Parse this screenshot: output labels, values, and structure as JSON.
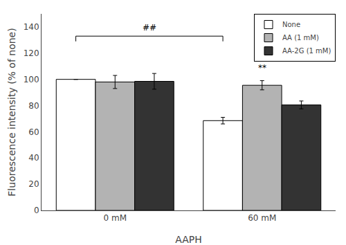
{
  "chart_data": {
    "type": "bar",
    "categories": [
      "0 mM",
      "60 mM"
    ],
    "xlabel": "AAPH",
    "ylabel": "Fluorescence intensity (% of none)",
    "series": [
      {
        "name": "None",
        "color": "#ffffff",
        "values": [
          100.0,
          68.5
        ],
        "errors": [
          0.0,
          2.5
        ]
      },
      {
        "name": "AA (1 mM)",
        "color": "#b3b3b3",
        "values": [
          98.0,
          95.5
        ],
        "errors": [
          5.0,
          3.5
        ]
      },
      {
        "name": "AA-2G (1 mM)",
        "color": "#333333",
        "values": [
          98.5,
          80.5
        ],
        "errors": [
          6.0,
          3.0
        ]
      }
    ],
    "ylim": [
      0,
      150
    ],
    "yticks": [
      0,
      20,
      40,
      60,
      80,
      100,
      120,
      140
    ],
    "grid": false,
    "legend": "upper right",
    "annotations": [
      {
        "text": "##",
        "categories": [
          "0 mM",
          "60 mM"
        ],
        "series": "None",
        "y": 133,
        "y_end": 129,
        "text_y": 134.5
      },
      {
        "text": "**",
        "category": "60 mM",
        "series": "AA (1 mM)",
        "y": 104
      }
    ]
  }
}
